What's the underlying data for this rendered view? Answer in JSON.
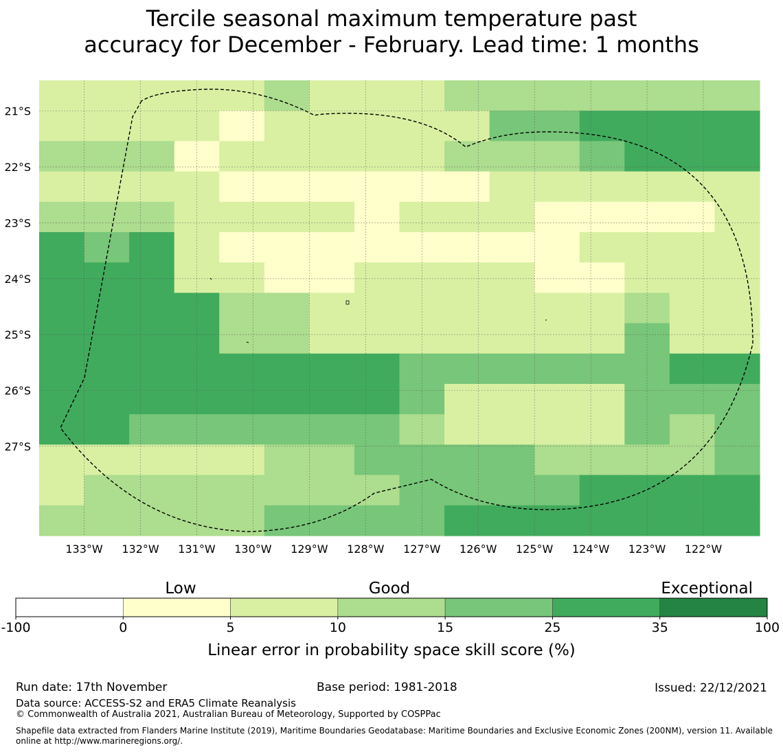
{
  "title": {
    "line1": "Tercile seasonal maximum temperature past",
    "line2": "accuracy for December - February. Lead time: 1 months"
  },
  "map": {
    "lat_labels": [
      "21°S",
      "22°S",
      "23°S",
      "24°S",
      "25°S",
      "26°S",
      "27°S"
    ],
    "lon_labels": [
      "133°W",
      "132°W",
      "131°W",
      "130°W",
      "129°W",
      "128°W",
      "127°W",
      "126°W",
      "125°W",
      "124°W",
      "123°W",
      "122°W"
    ],
    "extent": {
      "lon_west": -133.8,
      "lon_east": -121.0,
      "lat_north": -20.45,
      "lat_south": -28.6
    },
    "grid": {
      "cell_deg": 0.555,
      "rows": [
        "1111121112222222",
        "1111011111334444",
        "2220111112223444",
        "1111000000111111",
        "2221111011100001",
        "4341000000001111",
        "4441100111100111",
        "4444221111111211",
        "4444221111111311",
        "4444444433333344",
        "4444444431111333",
        "4433333321111323",
        "1111122333322223",
        "1222222233334444",
        "2222233334444444"
      ],
      "classes": [
        "0 to 5",
        "5 to 10",
        "10 to 15",
        "15 to 25",
        "25 to 35"
      ],
      "class_colors": [
        "#ffffcc",
        "#d9f0a3",
        "#addd8e",
        "#78c679",
        "#41ab5d"
      ]
    },
    "boundary_style": "dashed"
  },
  "colorbar": {
    "category_labels": [
      "Low",
      "Good",
      "Exceptional"
    ],
    "ticks": [
      "-100",
      "0",
      "5",
      "10",
      "15",
      "25",
      "35",
      "100"
    ],
    "colors": [
      "#ffffff",
      "#ffffcc",
      "#d9f0a3",
      "#addd8e",
      "#78c679",
      "#41ab5d",
      "#238443"
    ],
    "label": "Linear error in probability space skill score (%)"
  },
  "footer": {
    "run_date": "Run date: 17th November",
    "base_period": "Base period: 1981-2018",
    "issued": "Issued: 22/12/2021",
    "data_source": "Data source: ACCESS-S2 and ERA5 Climate Reanalysis",
    "copyright": "© Commonwealth of Australia 2021, Australian Bureau of Meteorology, Supported by COSPPac",
    "shapefile": "Shapefile data extracted from Flanders Marine Institute (2019), Maritime Boundaries Geodatabase: Maritime Boundaries and Exclusive Economic Zones (200NM), version 11. Available online at http://www.marineregions.org/."
  }
}
